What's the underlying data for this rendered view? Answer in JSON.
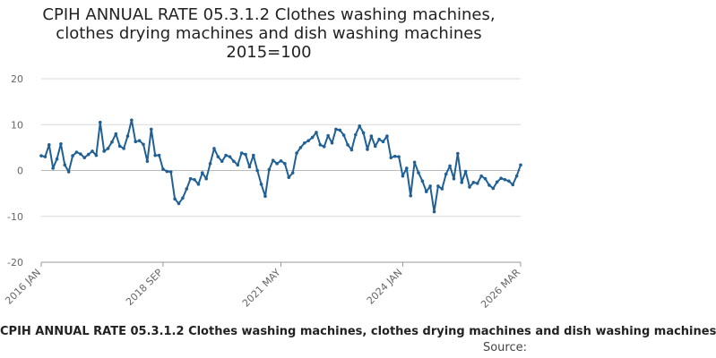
{
  "chart_data": {
    "type": "line",
    "title_lines": [
      "CPIH ANNUAL RATE 05.3.1.2 Clothes washing machines,",
      "clothes drying machines and dish washing machines",
      "2015=100"
    ],
    "x_tick_labels": [
      "2016 JAN",
      "2018 SEP",
      "2021 MAY",
      "2024 JAN",
      "2026 MAR"
    ],
    "y_ticks": [
      20,
      10,
      0,
      -10,
      -20
    ],
    "ylim": [
      -20,
      20
    ],
    "grid": true,
    "series": [
      {
        "name": "CPIH ANNUAL RATE 05.3.1.2 Clothes washing machines, clothes drying machines and dish washing machines",
        "color": "#206095",
        "start": "2016 JAN",
        "frequency": "monthly",
        "values": [
          3.2,
          3.0,
          5.6,
          0.5,
          2.5,
          5.8,
          1.2,
          -0.3,
          3.2,
          4.0,
          3.6,
          2.8,
          3.5,
          4.2,
          3.3,
          10.5,
          4.2,
          4.8,
          6.2,
          8.0,
          5.3,
          4.8,
          7.5,
          11.0,
          6.3,
          6.5,
          5.7,
          2.0,
          9.0,
          3.3,
          3.3,
          0.3,
          -0.2,
          -0.3,
          -6.2,
          -7.2,
          -6.0,
          -4.0,
          -1.8,
          -2.0,
          -3.0,
          -0.5,
          -1.8,
          1.5,
          4.8,
          3.0,
          2.0,
          3.3,
          3.0,
          2.0,
          1.2,
          3.8,
          3.5,
          0.8,
          3.3,
          0.0,
          -3.0,
          -5.6,
          0.2,
          2.2,
          1.5,
          2.1,
          1.5,
          -1.5,
          -0.5,
          3.8,
          5.0,
          6.0,
          6.5,
          7.2,
          8.3,
          5.6,
          5.2,
          7.6,
          6.0,
          9.0,
          8.8,
          7.7,
          5.6,
          4.5,
          7.8,
          9.7,
          8.2,
          4.6,
          7.5,
          5.3,
          6.8,
          6.3,
          7.5,
          2.8,
          3.1,
          3.0,
          -1.2,
          0.5,
          -5.5,
          1.8,
          -0.5,
          -2.3,
          -4.6,
          -3.4,
          -9.0,
          -3.4,
          -4.0,
          -0.8,
          1.0,
          -1.8,
          3.7,
          -2.6,
          -0.2,
          -3.6,
          -2.6,
          -2.8,
          -1.2,
          -1.8,
          -3.2,
          -3.9,
          -2.5,
          -1.7,
          -2.0,
          -2.3,
          -3.1,
          -1.2,
          1.2
        ]
      }
    ],
    "caption": "CPIH ANNUAL RATE 05.3.1.2 Clothes washing machines, clothes drying machines and dish washing machines",
    "source_label": "Source:"
  }
}
